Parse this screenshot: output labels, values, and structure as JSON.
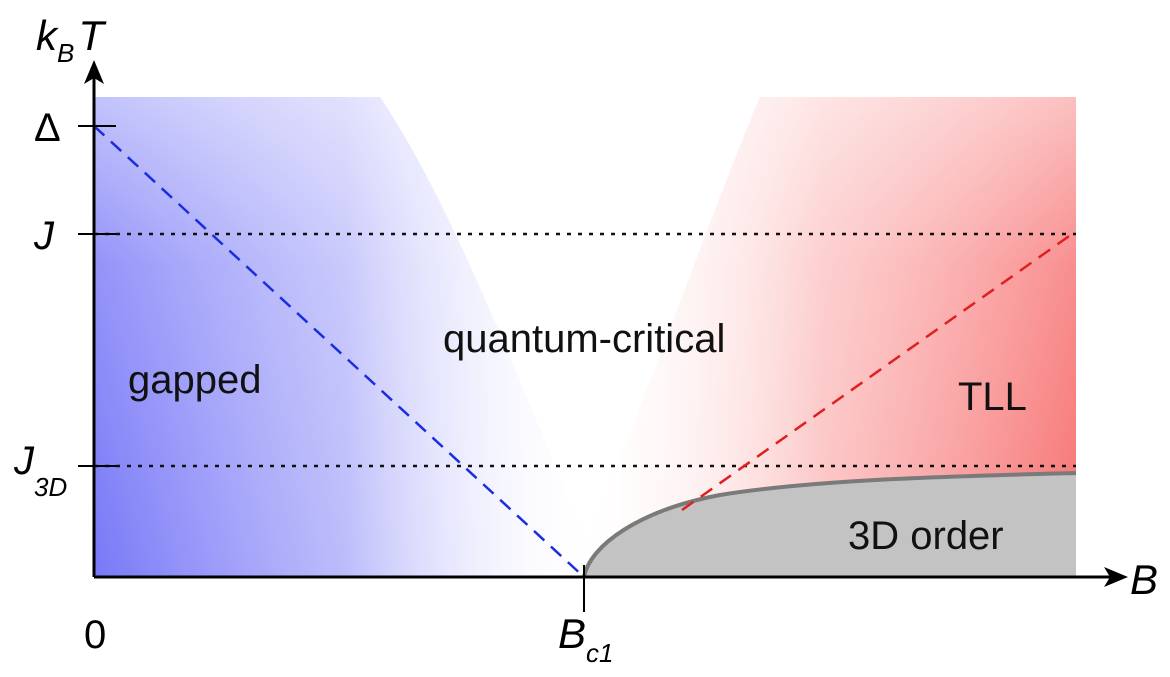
{
  "axes": {
    "y_label_main": "k",
    "y_label_sub": "B",
    "y_label_tail": "T",
    "x_label": "B",
    "origin_label": "0",
    "x_tick_main": "B",
    "x_tick_sub": "c1"
  },
  "y_ticks": {
    "delta": "Δ",
    "j": "J",
    "j3d_main": "J",
    "j3d_sub": "3D"
  },
  "regions": {
    "gapped": "gapped",
    "quantum_critical": "quantum-critical",
    "tll": "TLL",
    "order": "3D order"
  },
  "colors": {
    "gapped": "#7a7af6",
    "tll": "#f77a7a",
    "order": "#c3c3c3",
    "order_border": "#7a7a7a",
    "blue_dash": "#1a2ee0",
    "red_dash": "#e02020",
    "dotted": "#111111"
  }
}
